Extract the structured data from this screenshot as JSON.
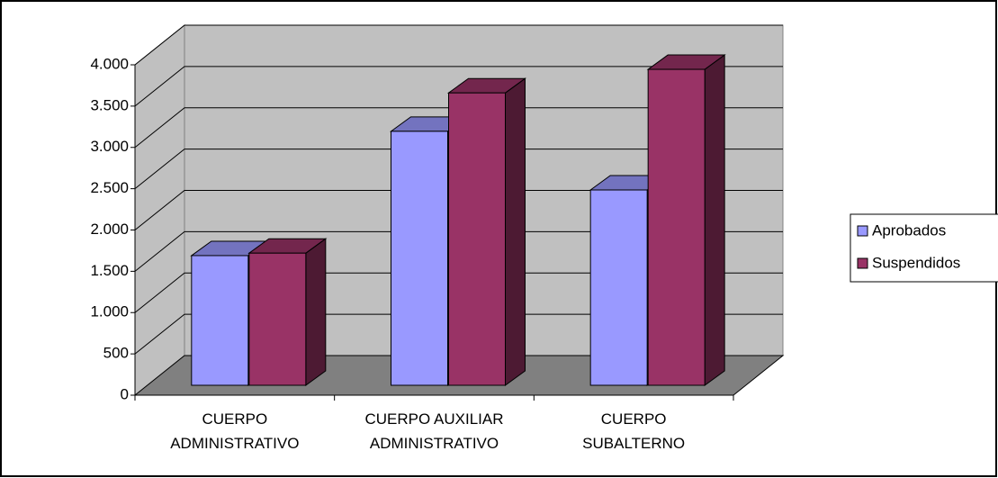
{
  "chart_data": {
    "type": "bar3d",
    "categories": [
      "CUERPO\nADMINISTRATIVO",
      "CUERPO AUXILIAR\nADMINISTRATIVO",
      "CUERPO\nSUBALTERNO"
    ],
    "series": [
      {
        "name": "Aprobados",
        "color": "#9999ff",
        "values": [
          1570,
          3075,
          2365
        ]
      },
      {
        "name": "Suspendidos",
        "color": "#993366",
        "values": [
          1600,
          3540,
          3825
        ]
      }
    ],
    "ylim": [
      0,
      4000
    ],
    "yticks": [
      0,
      500,
      {
        "value": 1000,
        "label": "1.000"
      },
      {
        "value": 1500,
        "label": "1.500"
      },
      {
        "value": 2000,
        "label": "2.000"
      },
      {
        "value": 2500,
        "label": "2.500"
      },
      {
        "value": 3000,
        "label": "3.000"
      },
      {
        "value": 3500,
        "label": "3.500"
      },
      {
        "value": 4000,
        "label": "4.000"
      }
    ],
    "grid": true,
    "legend": "right"
  }
}
